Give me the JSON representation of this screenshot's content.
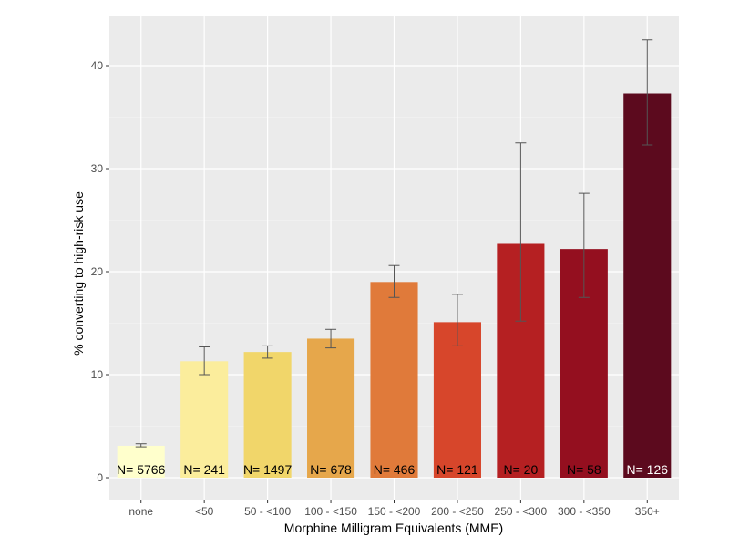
{
  "chart_data": {
    "type": "bar",
    "title": "",
    "xlabel": "Morphine Milligram Equivalents (MME)",
    "ylabel": "% converting to high-risk use",
    "ylim": [
      0,
      44
    ],
    "yticks": [
      0,
      10,
      20,
      30,
      40
    ],
    "grid": true,
    "legend": "none",
    "categories": [
      "none",
      "<50",
      "50 - <100",
      "100 - <150",
      "150 - <200",
      "200 - <250",
      "250 - <300",
      "300 - <350",
      "350+"
    ],
    "values": [
      3.1,
      11.3,
      12.2,
      13.5,
      19.0,
      15.1,
      22.7,
      22.2,
      37.3
    ],
    "error_low": [
      3.0,
      10.0,
      11.6,
      12.6,
      17.5,
      12.8,
      15.2,
      17.5,
      32.3
    ],
    "error_high": [
      3.3,
      12.7,
      12.8,
      14.4,
      20.6,
      17.8,
      32.5,
      27.6,
      42.5
    ],
    "n_labels": [
      "N= 5766",
      "N= 241",
      "N= 1497",
      "N= 678",
      "N= 466",
      "N= 121",
      "N= 20",
      "N= 58",
      "N= 126"
    ],
    "colors": [
      "#ffffcc",
      "#fbed9c",
      "#f1d66a",
      "#e6a74b",
      "#e07a3a",
      "#d7462b",
      "#b52022",
      "#940f1f",
      "#5c0a1e"
    ],
    "n_label_colors": [
      "#000000",
      "#000000",
      "#000000",
      "#000000",
      "#000000",
      "#000000",
      "#000000",
      "#000000",
      "#ffffff"
    ]
  }
}
